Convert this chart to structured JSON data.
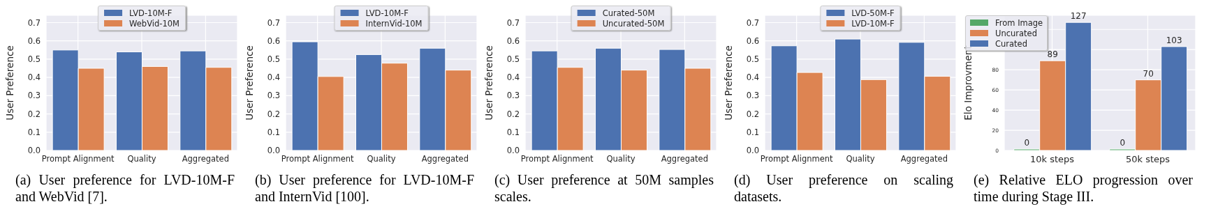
{
  "chart_data": [
    {
      "type": "bar",
      "ylabel": "User Preference",
      "categories": [
        "Prompt Alignment",
        "Quality",
        "Aggregated"
      ],
      "ylim": [
        0,
        0.74
      ],
      "yticks": [
        {
          "value": 0,
          "label": "0.0"
        },
        0.1,
        0.2,
        0.3,
        0.4,
        0.5,
        0.6,
        0.7
      ],
      "grid": true,
      "legend": "top",
      "series": [
        {
          "name": "LVD-10M-F",
          "color": "#4c72b0",
          "values": [
            0.55,
            0.54,
            0.545
          ]
        },
        {
          "name": "WebVid-10M",
          "color": "#dd8452",
          "values": [
            0.45,
            0.46,
            0.455
          ]
        }
      ],
      "annotations": [
        "(a) User preference for LVD-10M-F and WebVid [7]."
      ]
    },
    {
      "type": "bar",
      "ylabel": "User Preference",
      "categories": [
        "Prompt Alignment",
        "Quality",
        "Aggregated"
      ],
      "ylim": [
        0,
        0.74
      ],
      "yticks": [
        {
          "value": 0,
          "label": "0.0"
        },
        0.1,
        0.2,
        0.3,
        0.4,
        0.5,
        0.6,
        0.7
      ],
      "grid": true,
      "legend": "top",
      "series": [
        {
          "name": "LVD-10M-F",
          "color": "#4c72b0",
          "values": [
            0.595,
            0.525,
            0.56
          ]
        },
        {
          "name": "InternVid-10M",
          "color": "#dd8452",
          "values": [
            0.405,
            0.478,
            0.44
          ]
        }
      ],
      "annotations": [
        "(b) User preference for LVD-10M-F and InternVid [100]."
      ]
    },
    {
      "type": "bar",
      "ylabel": "User Preference",
      "categories": [
        "Prompt Alignment",
        "Quality",
        "Aggregated"
      ],
      "ylim": [
        0,
        0.74
      ],
      "yticks": [
        {
          "value": 0,
          "label": "0.0"
        },
        0.1,
        0.2,
        0.3,
        0.4,
        0.5,
        0.6,
        0.7
      ],
      "grid": true,
      "legend": "top",
      "series": [
        {
          "name": "Curated-50M",
          "color": "#4c72b0",
          "values": [
            0.545,
            0.56,
            0.553
          ]
        },
        {
          "name": "Uncurated-50M",
          "color": "#dd8452",
          "values": [
            0.455,
            0.44,
            0.45
          ]
        }
      ],
      "annotations": [
        "(c) User preference at 50M samples scales."
      ]
    },
    {
      "type": "bar",
      "ylabel": "User Preference",
      "categories": [
        "Prompt Alignment",
        "Quality",
        "Aggregated"
      ],
      "ylim": [
        0,
        0.74
      ],
      "yticks": [
        {
          "value": 0,
          "label": "0.0"
        },
        0.1,
        0.2,
        0.3,
        0.4,
        0.5,
        0.6,
        0.7
      ],
      "grid": true,
      "legend": "top",
      "series": [
        {
          "name": "LVD-50M-F",
          "color": "#4c72b0",
          "values": [
            0.573,
            0.61,
            0.592
          ]
        },
        {
          "name": "LVD-10M-F",
          "color": "#dd8452",
          "values": [
            0.427,
            0.388,
            0.406
          ]
        }
      ],
      "annotations": [
        "(d) User preference on scaling datasets."
      ]
    },
    {
      "type": "bar",
      "ylabel": "Elo Improvment",
      "categories": [
        "10k steps",
        "50k steps"
      ],
      "ylim": [
        0,
        134
      ],
      "yticks": [
        0,
        20,
        40,
        60,
        80,
        {
          "value": 100,
          "label": null
        },
        {
          "value": 120,
          "label": null
        }
      ],
      "grid": true,
      "legend": "top left",
      "data_labels": true,
      "series": [
        {
          "name": "From Image",
          "color": "#55a868",
          "values": [
            0,
            0
          ]
        },
        {
          "name": "Uncurated",
          "color": "#dd8452",
          "values": [
            89,
            70
          ]
        },
        {
          "name": "Curated",
          "color": "#4c72b0",
          "values": [
            127,
            103
          ]
        }
      ],
      "annotations": [
        "(e) Relative ELO progression over time during Stage III."
      ]
    }
  ]
}
